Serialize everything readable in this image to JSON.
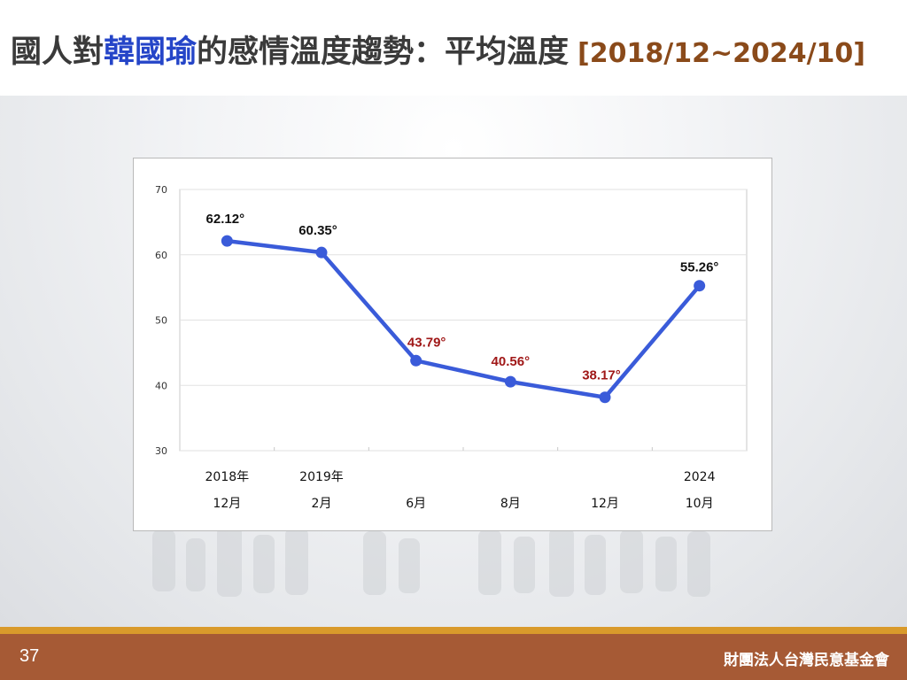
{
  "slide": {
    "title_prefix": "國人對",
    "title_highlight": "韓國瑜",
    "title_suffix": "的感情溫度趨勢：平均溫度",
    "title_range": "[2018/12~2024/10]",
    "page_number": "37",
    "organization": "財團法人台灣民意基金會"
  },
  "colors": {
    "line": "#3a5bd9",
    "label_normal": "#111111",
    "label_low": "#a01818",
    "highlight": "#2545c8",
    "footer": "#a65a35",
    "footer_strip": "#d99a2b"
  },
  "chart_data": {
    "type": "line",
    "title": "",
    "xlabel": "",
    "ylabel": "",
    "ylim": [
      30,
      70
    ],
    "yticks": [
      "30",
      "40",
      "50",
      "60",
      "70"
    ],
    "grid": true,
    "categories": [
      {
        "line1": "2018年",
        "line2": "12月"
      },
      {
        "line1": "2019年",
        "line2": "2月"
      },
      {
        "line1": "",
        "line2": "6月"
      },
      {
        "line1": "",
        "line2": "8月"
      },
      {
        "line1": "",
        "line2": "12月"
      },
      {
        "line1": "2024",
        "line2": "10月"
      }
    ],
    "series": [
      {
        "values": [
          62.12,
          60.35,
          43.79,
          40.56,
          38.17,
          55.26
        ],
        "labels": [
          "62.12°",
          "60.35°",
          "43.79°",
          "40.56°",
          "38.17°",
          "55.26°"
        ],
        "label_colors": [
          "normal",
          "normal",
          "low",
          "low",
          "low",
          "normal"
        ]
      }
    ]
  }
}
